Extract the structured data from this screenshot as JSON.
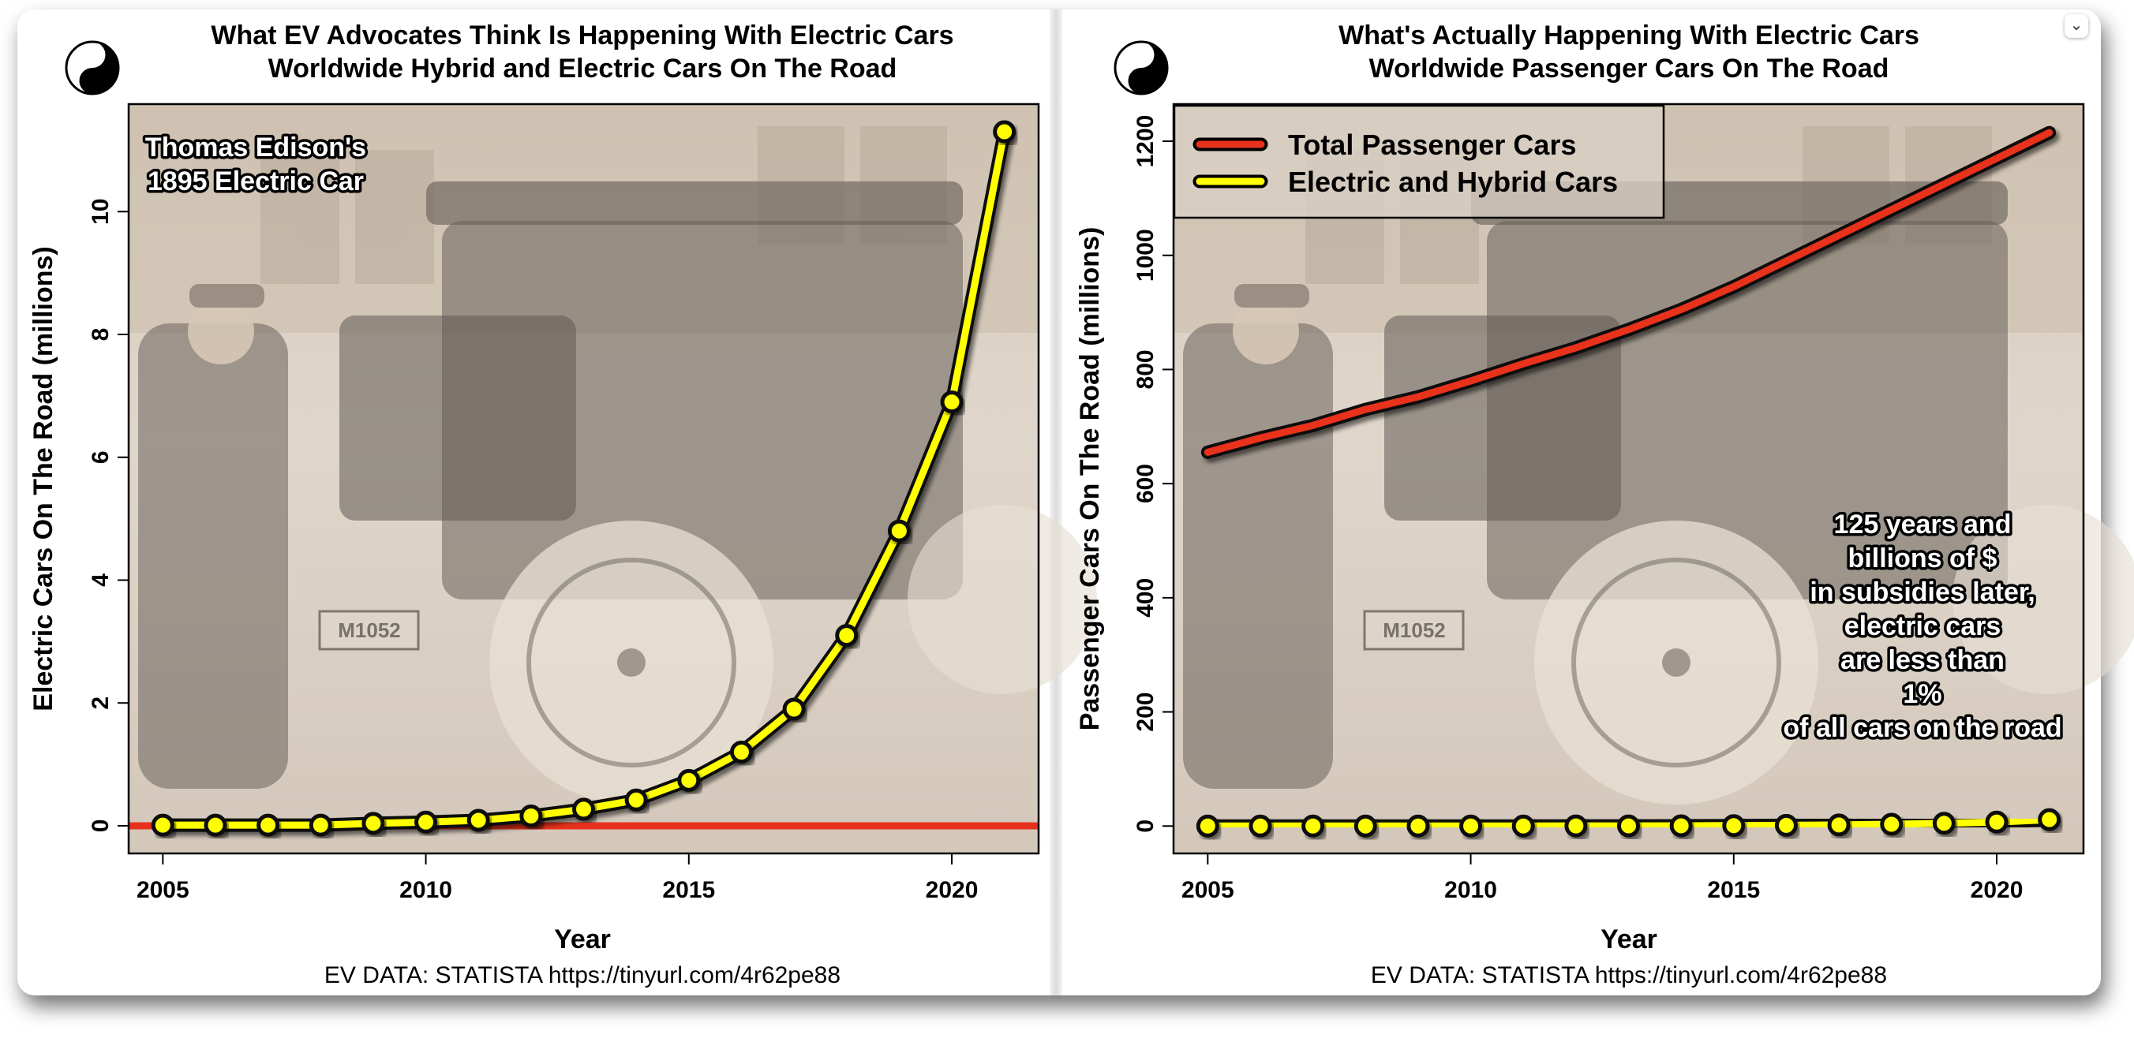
{
  "colors": {
    "total": "#e8311c",
    "ev": "#ffff00",
    "point_stroke": "#111111"
  },
  "chart_data": [
    {
      "type": "line",
      "title": "What EV Advocates Think Is Happening With Electric Cars",
      "subtitle": "Worldwide Hybrid and Electric Cars On The Road",
      "xlabel": "Year",
      "ylabel": "Electric Cars On The Road (millions)",
      "xlim": [
        2004.35,
        2021.65
      ],
      "ylim": [
        -0.45,
        11.75
      ],
      "x_ticks": [
        2005,
        2010,
        2015,
        2020
      ],
      "y_ticks": [
        0,
        2,
        4,
        6,
        8,
        10
      ],
      "grid": false,
      "hline": {
        "y": 0,
        "color": "#e8311c"
      },
      "series": [
        {
          "x": [
            2005,
            2006,
            2007,
            2008,
            2009,
            2010,
            2011,
            2012,
            2013,
            2014,
            2015,
            2016,
            2017,
            2018,
            2019,
            2020,
            2021
          ],
          "values": [
            0.01,
            0.01,
            0.01,
            0.01,
            0.04,
            0.06,
            0.09,
            0.16,
            0.27,
            0.42,
            0.74,
            1.2,
            1.9,
            3.1,
            4.8,
            6.9,
            11.3
          ]
        }
      ],
      "annotations": [
        {
          "text": "Thomas Edison's",
          "line2": "1895 Electric Car"
        }
      ],
      "source": "EV DATA: STATISTA https://tinyurl.com/4r62pe88"
    },
    {
      "type": "line",
      "title": "What's Actually Happening With Electric Cars",
      "subtitle": "Worldwide Passenger Cars On The Road",
      "xlabel": "Year",
      "ylabel": "Passenger Cars On The Road (millions)",
      "xlim": [
        2004.35,
        2021.65
      ],
      "ylim": [
        -48,
        1265
      ],
      "x_ticks": [
        2005,
        2010,
        2015,
        2020
      ],
      "y_ticks": [
        0,
        200,
        400,
        600,
        800,
        1000,
        1200
      ],
      "grid": false,
      "legend": "top-left",
      "series": [
        {
          "name": "Total Passenger Cars",
          "x": [
            2005,
            2006,
            2007,
            2008,
            2009,
            2010,
            2011,
            2012,
            2013,
            2014,
            2015,
            2016,
            2017,
            2018,
            2019,
            2020,
            2021
          ],
          "values": [
            655,
            680,
            702,
            730,
            752,
            780,
            810,
            838,
            870,
            905,
            945,
            990,
            1035,
            1080,
            1125,
            1170,
            1215
          ]
        },
        {
          "name": "Electric and Hybrid Cars",
          "x": [
            2005,
            2006,
            2007,
            2008,
            2009,
            2010,
            2011,
            2012,
            2013,
            2014,
            2015,
            2016,
            2017,
            2018,
            2019,
            2020,
            2021
          ],
          "values": [
            0.01,
            0.01,
            0.01,
            0.01,
            0.04,
            0.06,
            0.09,
            0.16,
            0.27,
            0.42,
            0.74,
            1.2,
            1.9,
            3.1,
            4.8,
            6.9,
            11.3
          ]
        }
      ],
      "annotations": [
        {
          "lines": [
            "125 years and",
            "billions of $",
            "in subsidies later,",
            "electric cars",
            "are less than",
            "1%",
            "of all cars on the road"
          ]
        }
      ],
      "source": "EV DATA: STATISTA https://tinyurl.com/4r62pe88"
    }
  ]
}
